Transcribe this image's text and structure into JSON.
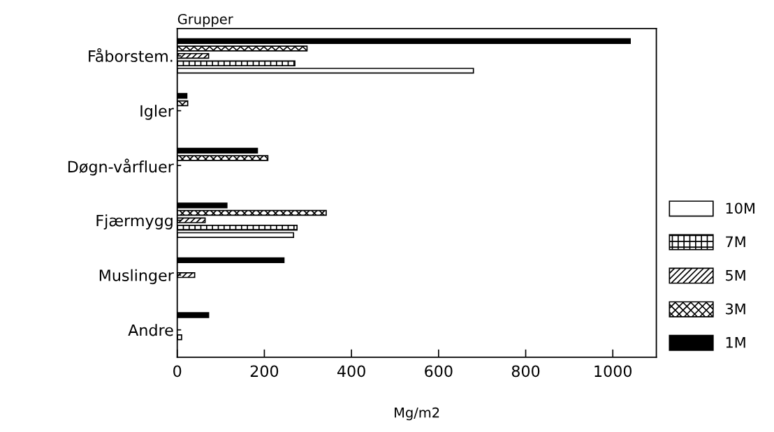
{
  "chart_data": {
    "type": "bar",
    "orientation": "horizontal",
    "ylabel": "Grupper",
    "xlabel": "Mg/m2",
    "categories": [
      "Fåborstem.",
      "Igler",
      "Døgn-vårfluer",
      "Fjærmygg",
      "Muslinger",
      "Andre"
    ],
    "series": [
      {
        "name": "10M",
        "color": "#ffffff",
        "values": [
          680,
          null,
          null,
          267,
          null,
          null
        ]
      },
      {
        "name": "7M",
        "color": "#000000",
        "values": [
          270,
          null,
          null,
          275,
          null,
          10
        ]
      },
      {
        "name": "5M",
        "color": "#000000",
        "values": [
          72,
          null,
          null,
          64,
          40,
          null
        ]
      },
      {
        "name": "3M",
        "color": "#000000",
        "values": [
          298,
          24,
          208,
          342,
          null,
          null
        ]
      },
      {
        "name": "1M",
        "color": "#000000",
        "values": [
          1040,
          22,
          184,
          114,
          245,
          72
        ]
      }
    ],
    "xlim": [
      0,
      1100
    ],
    "xticks": [
      0,
      200,
      400,
      600,
      800,
      1000
    ],
    "grid": false,
    "legend": "bottom right"
  }
}
